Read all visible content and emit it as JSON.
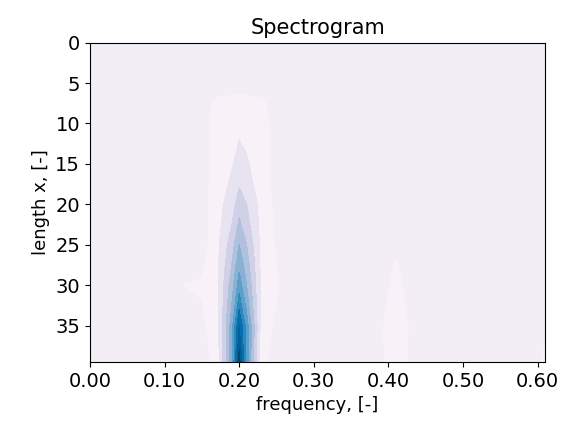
{
  "chart_data": {
    "type": "contour",
    "title": "Spectrogram",
    "x_label": "frequency, [-]",
    "y_label": "length x, [-]",
    "x": [
      0.0,
      0.15,
      0.17,
      0.19,
      0.2,
      0.21,
      0.23,
      0.25,
      0.27,
      0.36,
      0.39,
      0.41,
      0.43,
      0.46,
      0.58,
      0.61
    ],
    "y": [
      0,
      5,
      7.5,
      10,
      15,
      20,
      25,
      27.5,
      30,
      35,
      39.5
    ],
    "cells": [
      [
        0,
        0,
        0,
        0,
        0,
        0,
        0,
        0,
        0,
        0,
        0,
        0,
        0,
        0,
        0,
        0
      ],
      [
        0,
        0,
        0,
        0,
        0,
        0,
        0,
        0,
        0,
        0,
        0,
        0,
        0,
        0,
        0,
        0
      ],
      [
        0,
        0,
        0.07,
        0.08,
        0.08,
        0.08,
        0.07,
        0,
        0,
        0,
        0,
        0,
        0,
        0,
        0,
        0
      ],
      [
        0,
        0,
        0.1,
        0.12,
        0.13,
        0.12,
        0.1,
        0,
        0,
        0,
        0,
        0,
        0,
        0,
        0,
        0
      ],
      [
        0,
        0,
        0.1,
        0.14,
        0.18,
        0.16,
        0.1,
        0,
        0,
        0,
        0,
        0,
        0,
        0,
        0,
        0
      ],
      [
        0,
        0,
        0.11,
        0.2,
        0.3,
        0.25,
        0.11,
        0.02,
        0,
        0,
        0,
        0,
        0,
        0,
        0,
        0
      ],
      [
        0,
        0,
        0.12,
        0.3,
        0.45,
        0.35,
        0.12,
        0.04,
        0,
        0,
        0,
        0,
        0,
        0,
        0,
        0
      ],
      [
        0,
        0.03,
        0.12,
        0.35,
        0.52,
        0.4,
        0.12,
        0.05,
        0.02,
        0,
        0,
        0.06,
        0,
        0,
        0,
        0
      ],
      [
        0,
        0.06,
        0.12,
        0.4,
        0.6,
        0.45,
        0.12,
        0.06,
        0,
        0,
        0.02,
        0.07,
        0.02,
        0,
        0,
        0
      ],
      [
        0,
        0.03,
        0.1,
        0.5,
        0.85,
        0.6,
        0.1,
        0.03,
        0,
        0,
        0.03,
        0.14,
        0.03,
        0,
        0,
        0.04
      ],
      [
        0,
        0,
        0.08,
        0.5,
        1.0,
        0.6,
        0.08,
        0,
        0,
        0,
        0.03,
        0.12,
        0.03,
        0,
        0,
        0.06
      ]
    ],
    "levels": [
      0.05,
      0.15,
      0.25,
      0.35,
      0.45,
      0.55,
      0.65,
      0.75,
      0.85,
      0.95,
      1.05
    ],
    "xlim": [
      0.0,
      0.61
    ],
    "ylim": [
      39.5,
      0
    ],
    "xticks": [
      {
        "value": 0.0,
        "label": "0.00"
      },
      {
        "value": 0.1,
        "label": "0.10"
      },
      {
        "value": 0.2,
        "label": "0.20"
      },
      {
        "value": 0.3,
        "label": "0.30"
      },
      {
        "value": 0.4,
        "label": "0.40"
      },
      {
        "value": 0.5,
        "label": "0.50"
      },
      {
        "value": 0.6,
        "label": "0.60"
      }
    ],
    "yticks": [
      0,
      5,
      10,
      15,
      20,
      25,
      30,
      35
    ],
    "grid": false
  }
}
